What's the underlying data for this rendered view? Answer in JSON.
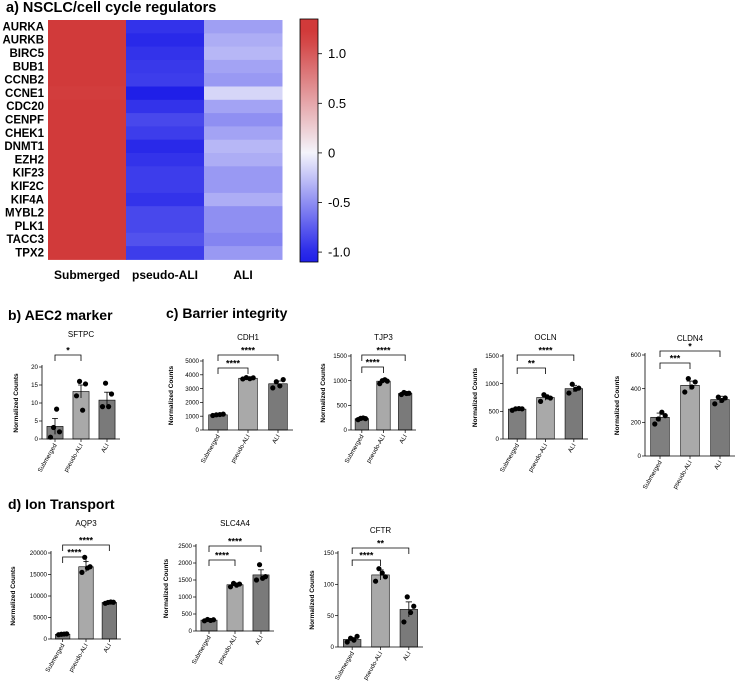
{
  "sections": {
    "a": "a) NSCLC/cell cycle regulators",
    "b": "b) AEC2 marker",
    "c": "c) Barrier integrity",
    "d": "d) Ion Transport"
  },
  "chart_data": [
    {
      "id": "heatmap",
      "type": "heatmap",
      "title": "a) NSCLC/cell cycle regulators",
      "rows": [
        "AURKA",
        "AURKB",
        "BIRC5",
        "BUB1",
        "CCNB2",
        "CCNE1",
        "CDC20",
        "CENPF",
        "CHEK1",
        "DNMT1",
        "EZH2",
        "KIF23",
        "KIF2C",
        "KIF4A",
        "MYBL2",
        "PLK1",
        "TACC3",
        "TPX2"
      ],
      "columns": [
        "Submerged",
        "pseudo-ALI",
        "ALI"
      ],
      "values": [
        [
          1.25,
          -0.95,
          -0.42
        ],
        [
          1.25,
          -1.0,
          -0.35
        ],
        [
          1.22,
          -0.95,
          -0.3
        ],
        [
          1.25,
          -0.92,
          -0.4
        ],
        [
          1.25,
          -0.9,
          -0.45
        ],
        [
          1.18,
          -1.1,
          -0.15
        ],
        [
          1.25,
          -0.95,
          -0.4
        ],
        [
          1.25,
          -0.85,
          -0.5
        ],
        [
          1.25,
          -0.9,
          -0.4
        ],
        [
          1.25,
          -1.0,
          -0.3
        ],
        [
          1.25,
          -0.95,
          -0.35
        ],
        [
          1.25,
          -0.9,
          -0.45
        ],
        [
          1.25,
          -0.9,
          -0.45
        ],
        [
          1.25,
          -0.95,
          -0.35
        ],
        [
          1.25,
          -0.85,
          -0.5
        ],
        [
          1.25,
          -0.85,
          -0.5
        ],
        [
          1.25,
          -0.8,
          -0.55
        ],
        [
          1.25,
          -0.9,
          -0.45
        ]
      ],
      "colorbar": {
        "range": [
          -1.1,
          1.35
        ],
        "ticks": [
          1.0,
          0.5,
          0,
          -0.5,
          -1.0
        ],
        "tick_labels": [
          "1.0",
          "0.5",
          "0",
          "-0.5",
          "-1.0"
        ],
        "low_color": "#1f1fe8",
        "mid_color": "#f4f4fb",
        "high_color": "#d13a3a"
      }
    },
    {
      "id": "SFTPC",
      "type": "bar",
      "title": "SFTPC",
      "ylabel": "Normalized Counts",
      "categories": [
        "Submerged",
        "pseudo-ALI",
        "ALI"
      ],
      "values": [
        3.5,
        13.2,
        10.8
      ],
      "errors": [
        2.2,
        1.8,
        2.2
      ],
      "points": [
        [
          0.5,
          3.2,
          8.3,
          2.0
        ],
        [
          12,
          16,
          8,
          15.3
        ],
        [
          9,
          15.5,
          9,
          12.5
        ]
      ],
      "yticks": [
        0,
        5,
        10,
        15,
        20
      ],
      "ylim": [
        0,
        20
      ],
      "significance": [
        {
          "from": 0,
          "to": 1,
          "label": "*"
        }
      ]
    },
    {
      "id": "CDH1",
      "type": "bar",
      "title": "CDH1",
      "ylabel": "Normalized Counts",
      "categories": [
        "Submerged",
        "pseudo-ALI",
        "ALI"
      ],
      "values": [
        1100,
        3750,
        3350
      ],
      "errors": [
        40,
        60,
        200
      ],
      "points": [
        [
          1050,
          1100,
          1120,
          1150
        ],
        [
          3700,
          3800,
          3720,
          3780
        ],
        [
          3050,
          3500,
          3200,
          3650
        ]
      ],
      "yticks": [
        0,
        1000,
        2000,
        3000,
        4000,
        5000
      ],
      "ylim": [
        0,
        5000
      ],
      "significance": [
        {
          "from": 0,
          "to": 1,
          "label": "****"
        },
        {
          "from": 0,
          "to": 2,
          "label": "****"
        }
      ]
    },
    {
      "id": "TJP3",
      "type": "bar",
      "title": "TJP3",
      "ylabel": "Normalized Counts",
      "categories": [
        "Submerged",
        "pseudo-ALI",
        "ALI"
      ],
      "values": [
        230,
        990,
        740
      ],
      "errors": [
        15,
        30,
        25
      ],
      "points": [
        [
          210,
          235,
          245,
          230
        ],
        [
          940,
          1000,
          1020,
          990
        ],
        [
          720,
          760,
          740,
          745
        ]
      ],
      "yticks": [
        0,
        500,
        1000,
        1500
      ],
      "ylim": [
        0,
        1500
      ],
      "significance": [
        {
          "from": 0,
          "to": 1,
          "label": "****"
        },
        {
          "from": 0,
          "to": 2,
          "label": "****"
        }
      ]
    },
    {
      "id": "OCLN",
      "type": "bar",
      "title": "OCLN",
      "ylabel": "Normalized Counts",
      "categories": [
        "Submerged",
        "pseudo-ALI",
        "ALI"
      ],
      "values": [
        540,
        750,
        910
      ],
      "errors": [
        20,
        50,
        60
      ],
      "points": [
        [
          520,
          545,
          550,
          545
        ],
        [
          680,
          800,
          760,
          740
        ],
        [
          830,
          990,
          900,
          920
        ]
      ],
      "yticks": [
        0,
        500,
        1000,
        1500
      ],
      "ylim": [
        0,
        1500
      ],
      "significance": [
        {
          "from": 0,
          "to": 1,
          "label": "**"
        },
        {
          "from": 0,
          "to": 2,
          "label": "****"
        }
      ]
    },
    {
      "id": "CLDN4",
      "type": "bar",
      "title": "CLDN4",
      "ylabel": "Normalized Counts",
      "categories": [
        "Submerged",
        "pseudo-ALI",
        "ALI"
      ],
      "values": [
        230,
        420,
        335
      ],
      "errors": [
        25,
        25,
        20
      ],
      "points": [
        [
          190,
          220,
          260,
          240
        ],
        [
          380,
          460,
          410,
          440
        ],
        [
          310,
          350,
          330,
          345
        ]
      ],
      "yticks": [
        0,
        200,
        400,
        600
      ],
      "ylim": [
        0,
        600
      ],
      "significance": [
        {
          "from": 0,
          "to": 1,
          "label": "***"
        },
        {
          "from": 0,
          "to": 2,
          "label": "*"
        }
      ]
    },
    {
      "id": "AQP3",
      "type": "bar",
      "title": "AQP3",
      "ylabel": "Normalized Counts",
      "categories": [
        "Submerged",
        "pseudo-ALI",
        "ALI"
      ],
      "values": [
        1100,
        16800,
        8500
      ],
      "errors": [
        100,
        1200,
        200
      ],
      "points": [
        [
          1000,
          1100,
          1150,
          1200
        ],
        [
          15500,
          19000,
          16500,
          16800
        ],
        [
          8300,
          8500,
          8600,
          8550
        ]
      ],
      "yticks": [
        0,
        5000,
        10000,
        15000,
        20000
      ],
      "ylim": [
        0,
        20000
      ],
      "significance": [
        {
          "from": 0,
          "to": 1,
          "label": "****"
        },
        {
          "from": 0,
          "to": 2,
          "label": "****"
        }
      ]
    },
    {
      "id": "SLC4A4",
      "type": "bar",
      "title": "SLC4A4",
      "ylabel": "Normalized Counts",
      "categories": [
        "Submerged",
        "pseudo-ALI",
        "ALI"
      ],
      "values": [
        320,
        1360,
        1650
      ],
      "errors": [
        25,
        50,
        150
      ],
      "points": [
        [
          300,
          340,
          310,
          330
        ],
        [
          1300,
          1400,
          1350,
          1380
        ],
        [
          1500,
          1950,
          1550,
          1600
        ]
      ],
      "yticks": [
        0,
        500,
        1000,
        1500,
        2000,
        2500
      ],
      "ylim": [
        0,
        2500
      ],
      "significance": [
        {
          "from": 0,
          "to": 1,
          "label": "****"
        },
        {
          "from": 0,
          "to": 2,
          "label": "****"
        }
      ]
    },
    {
      "id": "CFTR",
      "type": "bar",
      "title": "CFTR",
      "ylabel": "Normalized Counts",
      "categories": [
        "Submerged",
        "pseudo-ALI",
        "ALI"
      ],
      "values": [
        12,
        115,
        60
      ],
      "errors": [
        3,
        8,
        12
      ],
      "points": [
        [
          8,
          14,
          11,
          17
        ],
        [
          105,
          125,
          118,
          112
        ],
        [
          40,
          80,
          55,
          65
        ]
      ],
      "yticks": [
        0,
        50,
        100,
        150
      ],
      "ylim": [
        0,
        150
      ],
      "significance": [
        {
          "from": 0,
          "to": 1,
          "label": "****"
        },
        {
          "from": 0,
          "to": 2,
          "label": "**"
        }
      ]
    }
  ]
}
